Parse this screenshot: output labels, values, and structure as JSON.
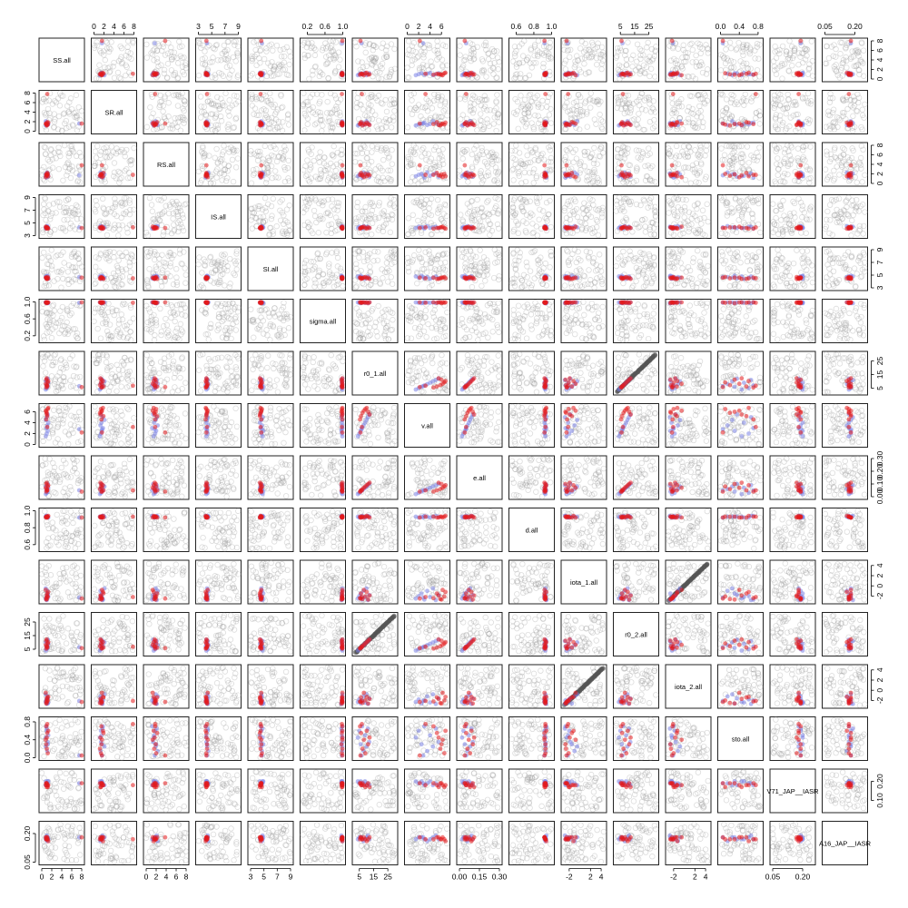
{
  "chart_data": {
    "type": "scatter",
    "variables": [
      "SS.all",
      "SR.all",
      "RS.all",
      "IS.all",
      "SI.all",
      "sigma.all",
      "r0_1.all",
      "v.all",
      "e.all",
      "d.all",
      "iota_1.all",
      "r0_2.all",
      "iota_2.all",
      "sto.all",
      "V71_JAP__IASR",
      "A16_JAP__IASR"
    ],
    "ranges": [
      [
        0,
        8
      ],
      [
        0,
        8
      ],
      [
        0,
        8
      ],
      [
        3,
        9
      ],
      [
        3,
        9
      ],
      [
        0.1,
        1.0
      ],
      [
        2,
        30
      ],
      [
        0,
        7
      ],
      [
        0,
        0.3
      ],
      [
        0.55,
        1.0
      ],
      [
        -3,
        4.5
      ],
      [
        2,
        30
      ],
      [
        -3,
        4.5
      ],
      [
        0,
        0.85
      ],
      [
        0.05,
        0.25
      ],
      [
        0.05,
        0.25
      ]
    ],
    "axis_ticks": [
      {
        "side": "top",
        "var": 1,
        "ticks": [
          0,
          2,
          4,
          6,
          8
        ]
      },
      {
        "side": "top",
        "var": 3,
        "ticks": [
          3,
          5,
          7,
          9
        ]
      },
      {
        "side": "top",
        "var": 5,
        "ticks": [
          0.2,
          0.6,
          1.0
        ],
        "labels": [
          "0.2",
          "0.6",
          "1.0"
        ]
      },
      {
        "side": "top",
        "var": 7,
        "ticks": [
          0,
          2,
          4,
          6
        ]
      },
      {
        "side": "top",
        "var": 9,
        "ticks": [
          0.6,
          0.8,
          1.0
        ],
        "labels": [
          "0.6",
          "0.8",
          "1.0"
        ]
      },
      {
        "side": "top",
        "var": 11,
        "ticks": [
          5,
          15,
          25
        ]
      },
      {
        "side": "top",
        "var": 13,
        "ticks": [
          0.0,
          0.4,
          0.8
        ],
        "labels": [
          "0.0",
          "0.4",
          "0.8"
        ]
      },
      {
        "side": "top",
        "var": 15,
        "ticks": [
          0.05,
          0.2
        ],
        "labels": [
          "0.05",
          "0.20"
        ]
      },
      {
        "side": "bottom",
        "var": 0,
        "ticks": [
          0,
          2,
          4,
          6,
          8
        ]
      },
      {
        "side": "bottom",
        "var": 2,
        "ticks": [
          0,
          2,
          4,
          6,
          8
        ]
      },
      {
        "side": "bottom",
        "var": 4,
        "ticks": [
          3,
          5,
          7,
          9
        ]
      },
      {
        "side": "bottom",
        "var": 6,
        "ticks": [
          5,
          15,
          25
        ]
      },
      {
        "side": "bottom",
        "var": 8,
        "ticks": [
          0.0,
          0.15,
          0.3
        ],
        "labels": [
          "0.00",
          "0.15",
          "0.30"
        ]
      },
      {
        "side": "bottom",
        "var": 10,
        "ticks": [
          -2,
          2,
          4
        ]
      },
      {
        "side": "bottom",
        "var": 12,
        "ticks": [
          -2,
          2,
          4
        ]
      },
      {
        "side": "bottom",
        "var": 14,
        "ticks": [
          0.05,
          0.2
        ],
        "labels": [
          "0.05",
          "0.20"
        ]
      },
      {
        "side": "right",
        "var": 0,
        "ticks": [
          0,
          2,
          4,
          6,
          8
        ]
      },
      {
        "side": "right",
        "var": 2,
        "ticks": [
          0,
          2,
          4,
          6,
          8
        ]
      },
      {
        "side": "right",
        "var": 4,
        "ticks": [
          3,
          5,
          7,
          9
        ]
      },
      {
        "side": "right",
        "var": 6,
        "ticks": [
          5,
          15,
          25
        ]
      },
      {
        "side": "right",
        "var": 8,
        "ticks": [
          0.0,
          0.1,
          0.2,
          0.3
        ],
        "labels": [
          "0.00",
          "0.10",
          "0.20",
          "0.30"
        ]
      },
      {
        "side": "right",
        "var": 10,
        "ticks": [
          -2,
          0,
          2,
          4
        ]
      },
      {
        "side": "right",
        "var": 12,
        "ticks": [
          -2,
          0,
          2,
          4
        ]
      },
      {
        "side": "right",
        "var": 14,
        "ticks": [
          0.1,
          0.2
        ],
        "labels": [
          "0.10",
          "0.20"
        ]
      },
      {
        "side": "left",
        "var": 1,
        "ticks": [
          0,
          2,
          4,
          6,
          8
        ]
      },
      {
        "side": "left",
        "var": 3,
        "ticks": [
          3,
          5,
          7,
          9
        ]
      },
      {
        "side": "left",
        "var": 5,
        "ticks": [
          0.2,
          0.6,
          1.0
        ],
        "labels": [
          "0.2",
          "0.6",
          "1.0"
        ]
      },
      {
        "side": "left",
        "var": 7,
        "ticks": [
          0,
          2,
          4,
          6
        ]
      },
      {
        "side": "left",
        "var": 9,
        "ticks": [
          0.6,
          0.8,
          1.0
        ],
        "labels": [
          "0.6",
          "0.8",
          "1.0"
        ]
      },
      {
        "side": "left",
        "var": 11,
        "ticks": [
          5,
          15,
          25
        ]
      },
      {
        "side": "left",
        "var": 13,
        "ticks": [
          0.0,
          0.4,
          0.8
        ],
        "labels": [
          "0.0",
          "0.4",
          "0.8"
        ]
      },
      {
        "side": "left",
        "var": 15,
        "ticks": [
          0.05,
          0.2
        ],
        "labels": [
          "0.05",
          "0.20"
        ]
      }
    ],
    "groups": [
      {
        "role": "background",
        "color": "#9a9a9a",
        "point_count": 60
      },
      {
        "role": "highlight-blue",
        "color": "#7b84e6",
        "point_count": 10
      },
      {
        "role": "highlight-red",
        "color": "#e41a1c",
        "point_count": 10
      }
    ],
    "highlight_points": [
      [
        0.8,
        1.2,
        1.5,
        4.2,
        4.8,
        0.99,
        4.0,
        1.5,
        0.02,
        0.93,
        -2.5,
        4.0,
        -2.3,
        0.45,
        0.2,
        0.17
      ],
      [
        1.0,
        1.4,
        1.8,
        4.4,
        4.6,
        0.98,
        5.0,
        2.0,
        0.03,
        0.92,
        -2.0,
        5.0,
        -1.8,
        0.6,
        0.19,
        0.18
      ],
      [
        1.2,
        1.6,
        2.0,
        4.3,
        4.9,
        0.97,
        6.0,
        2.5,
        0.04,
        0.93,
        -1.5,
        6.0,
        -2.6,
        0.3,
        0.2,
        0.18
      ],
      [
        0.9,
        1.8,
        1.2,
        4.1,
        4.5,
        0.99,
        7.0,
        3.0,
        0.05,
        0.94,
        -2.7,
        7.0,
        -2.0,
        0.7,
        0.18,
        0.17
      ],
      [
        1.1,
        1.3,
        2.3,
        4.5,
        4.7,
        0.99,
        8.0,
        3.5,
        0.06,
        0.93,
        -1.0,
        8.0,
        -1.2,
        0.15,
        0.19,
        0.16
      ],
      [
        1.3,
        1.5,
        1.6,
        4.2,
        4.4,
        0.98,
        9.0,
        4.0,
        0.07,
        0.92,
        -2.2,
        9.0,
        -2.4,
        0.5,
        0.2,
        0.17
      ],
      [
        0.8,
        2.1,
        1.9,
        4.3,
        4.6,
        0.99,
        10.0,
        4.5,
        0.08,
        0.93,
        -0.5,
        10.0,
        -0.8,
        0.25,
        0.18,
        0.18
      ],
      [
        1.0,
        1.7,
        2.1,
        4.4,
        4.8,
        0.97,
        11.0,
        5.0,
        0.09,
        0.94,
        -2.8,
        11.0,
        -2.7,
        0.65,
        0.19,
        0.19
      ],
      [
        1.2,
        1.4,
        1.4,
        4.2,
        4.5,
        0.99,
        12.0,
        5.5,
        0.1,
        0.93,
        -1.8,
        12.0,
        -1.6,
        0.35,
        0.18,
        0.17
      ],
      [
        7.5,
        1.6,
        1.7,
        4.3,
        4.7,
        0.98,
        6.5,
        2.8,
        0.05,
        0.92,
        -2.3,
        6.5,
        -2.1,
        0.05,
        0.19,
        0.18
      ],
      [
        0.9,
        1.5,
        1.8,
        4.1,
        4.6,
        0.99,
        5.5,
        4.6,
        0.04,
        0.93,
        -2.4,
        5.5,
        -2.2,
        0.7,
        0.19,
        0.17
      ],
      [
        1.1,
        1.9,
        2.2,
        4.2,
        4.4,
        0.98,
        6.2,
        5.2,
        0.05,
        0.92,
        -1.5,
        6.2,
        -1.4,
        0.55,
        0.18,
        0.18
      ],
      [
        1.0,
        1.2,
        1.6,
        4.3,
        4.5,
        0.99,
        7.2,
        5.8,
        0.06,
        0.93,
        -2.6,
        7.2,
        -2.5,
        0.2,
        0.19,
        0.17
      ],
      [
        0.8,
        1.6,
        1.3,
        4.4,
        4.6,
        0.99,
        8.2,
        6.2,
        0.07,
        0.92,
        -0.8,
        8.2,
        -0.5,
        0.4,
        0.18,
        0.18
      ],
      [
        1.2,
        1.4,
        2.0,
        4.2,
        4.7,
        0.98,
        9.2,
        6.5,
        0.08,
        0.93,
        -2.1,
        9.2,
        -2.0,
        0.1,
        0.17,
        0.17
      ],
      [
        1.3,
        1.8,
        1.5,
        4.1,
        4.5,
        0.99,
        10.2,
        6.7,
        0.09,
        0.94,
        -1.2,
        10.2,
        -1.3,
        0.6,
        0.18,
        0.16
      ],
      [
        0.9,
        1.5,
        1.9,
        4.3,
        4.6,
        0.97,
        11.2,
        6.0,
        0.1,
        0.93,
        -2.7,
        11.2,
        -2.6,
        0.3,
        0.19,
        0.17
      ],
      [
        1.0,
        1.3,
        1.7,
        4.2,
        4.4,
        0.99,
        12.2,
        5.5,
        0.11,
        0.92,
        -1.9,
        12.2,
        -1.7,
        0.45,
        0.17,
        0.18
      ],
      [
        1.1,
        7.8,
        1.8,
        4.3,
        4.5,
        0.98,
        6.8,
        3.2,
        0.05,
        0.93,
        -2.2,
        6.8,
        -2.1,
        0.75,
        0.18,
        0.17
      ],
      [
        8.0,
        1.6,
        3.8,
        4.2,
        4.6,
        0.99,
        5.8,
        2.2,
        0.04,
        0.92,
        -2.5,
        5.8,
        -2.3,
        0.05,
        0.19,
        0.18
      ]
    ],
    "highlight_colors": [
      "#7b84e6",
      "#7b84e6",
      "#7b84e6",
      "#7b84e6",
      "#7b84e6",
      "#7b84e6",
      "#7b84e6",
      "#7b84e6",
      "#7b84e6",
      "#7b84e6",
      "#e41a1c",
      "#e41a1c",
      "#e41a1c",
      "#e41a1c",
      "#e41a1c",
      "#e41a1c",
      "#e41a1c",
      "#e41a1c",
      "#e41a1c",
      "#e41a1c"
    ],
    "collinear_pairs": [
      [
        6,
        11
      ],
      [
        10,
        12
      ]
    ],
    "grid": false,
    "legend": "none"
  }
}
